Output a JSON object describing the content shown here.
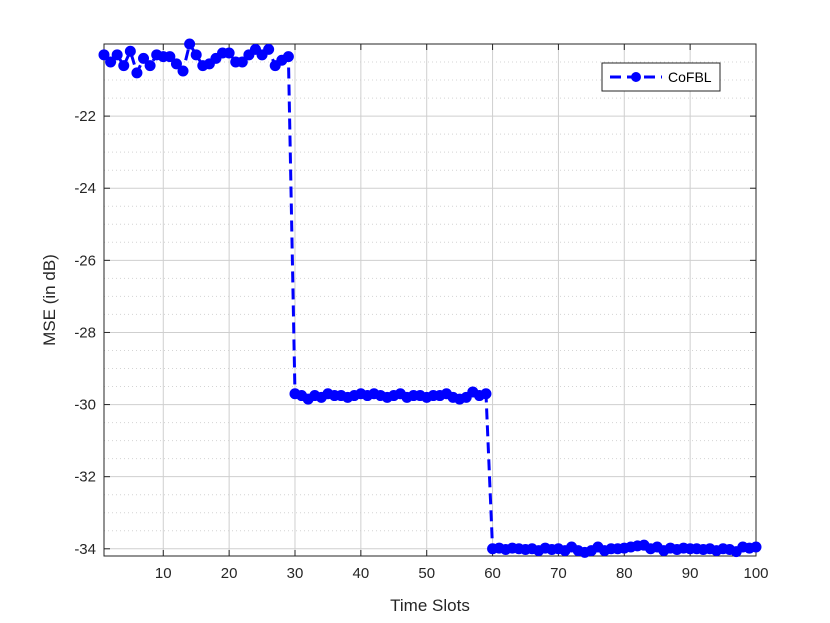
{
  "chart_data": {
    "type": "line",
    "xlabel": "Time Slots",
    "ylabel": "MSE (in dB)",
    "xlim": [
      1,
      100
    ],
    "ylim": [
      -34.2,
      -20.0
    ],
    "x_ticks": [
      10,
      20,
      30,
      40,
      50,
      60,
      70,
      80,
      90,
      100
    ],
    "y_ticks": [
      -22,
      -24,
      -26,
      -28,
      -30,
      -32,
      -34
    ],
    "y_minor_ticks": [
      -20.5,
      -21,
      -21.5,
      -22.5,
      -23,
      -23.5,
      -24.5,
      -25,
      -25.5,
      -26.5,
      -27,
      -27.5,
      -28.5,
      -29,
      -29.5,
      -30.5,
      -31,
      -31.5,
      -32.5,
      -33,
      -33.5
    ],
    "grid": true,
    "legend_position": "top-right",
    "series": [
      {
        "name": "CoFBL",
        "color": "#0000ff",
        "line_style": "dashed",
        "marker": "circle",
        "x": [
          1,
          2,
          3,
          4,
          5,
          6,
          7,
          8,
          9,
          10,
          11,
          12,
          13,
          14,
          15,
          16,
          17,
          18,
          19,
          20,
          21,
          22,
          23,
          24,
          25,
          26,
          27,
          28,
          29,
          30,
          31,
          32,
          33,
          34,
          35,
          36,
          37,
          38,
          39,
          40,
          41,
          42,
          43,
          44,
          45,
          46,
          47,
          48,
          49,
          50,
          51,
          52,
          53,
          54,
          55,
          56,
          57,
          58,
          59,
          60,
          61,
          62,
          63,
          64,
          65,
          66,
          67,
          68,
          69,
          70,
          71,
          72,
          73,
          74,
          75,
          76,
          77,
          78,
          79,
          80,
          81,
          82,
          83,
          84,
          85,
          86,
          87,
          88,
          89,
          90,
          91,
          92,
          93,
          94,
          95,
          96,
          97,
          98,
          99,
          100
        ],
        "values": [
          -20.3,
          -20.5,
          -20.3,
          -20.6,
          -20.2,
          -20.8,
          -20.4,
          -20.6,
          -20.3,
          -20.35,
          -20.35,
          -20.55,
          -20.75,
          -20.0,
          -20.3,
          -20.6,
          -20.55,
          -20.4,
          -20.25,
          -20.25,
          -20.5,
          -20.5,
          -20.3,
          -20.15,
          -20.3,
          -20.15,
          -20.6,
          -20.45,
          -20.35,
          -29.7,
          -29.75,
          -29.85,
          -29.75,
          -29.8,
          -29.7,
          -29.75,
          -29.75,
          -29.8,
          -29.75,
          -29.7,
          -29.75,
          -29.7,
          -29.75,
          -29.8,
          -29.75,
          -29.7,
          -29.8,
          -29.75,
          -29.75,
          -29.8,
          -29.75,
          -29.75,
          -29.7,
          -29.8,
          -29.85,
          -29.8,
          -29.65,
          -29.75,
          -29.7,
          -34.0,
          -33.98,
          -34.02,
          -33.98,
          -34.0,
          -34.02,
          -34.0,
          -34.05,
          -33.98,
          -34.02,
          -34.0,
          -34.05,
          -33.95,
          -34.05,
          -34.1,
          -34.05,
          -33.95,
          -34.05,
          -34.0,
          -34.0,
          -33.98,
          -33.95,
          -33.92,
          -33.9,
          -34.0,
          -33.95,
          -34.05,
          -33.98,
          -34.02,
          -33.98,
          -34.0,
          -34.0,
          -34.02,
          -34.0,
          -34.05,
          -34.0,
          -34.02,
          -34.08,
          -33.95,
          -33.98,
          -33.95
        ]
      }
    ]
  }
}
